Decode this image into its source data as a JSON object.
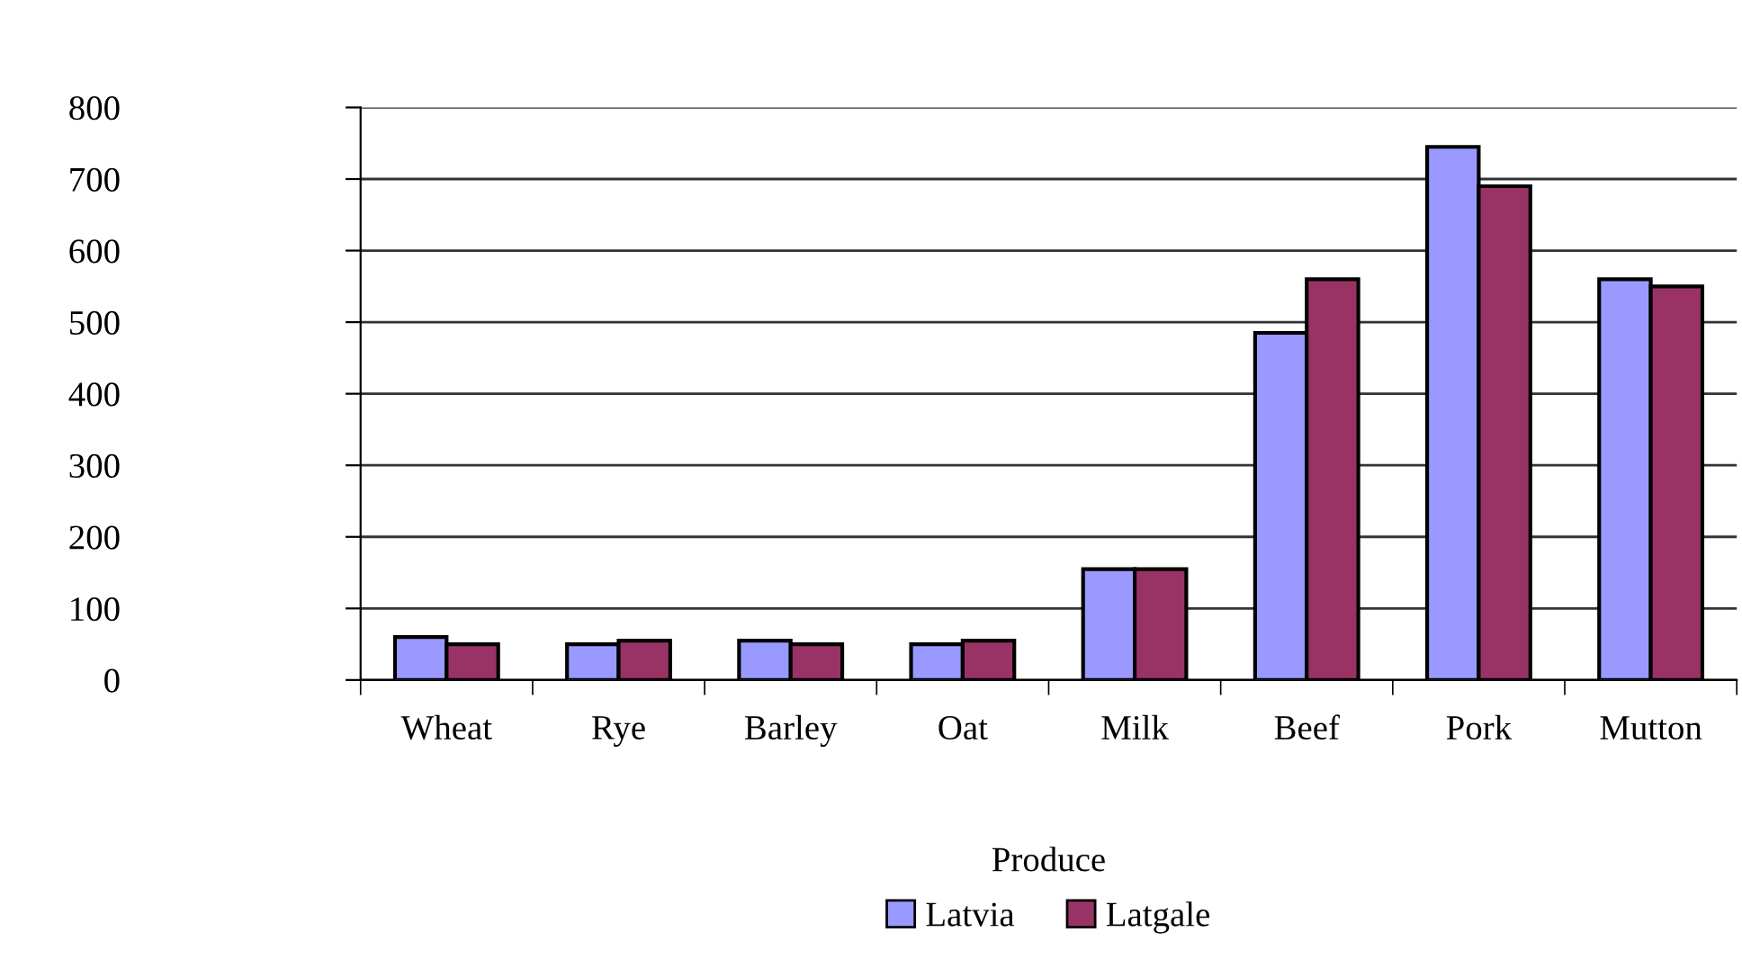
{
  "chart_data": {
    "type": "bar",
    "xlabel": "Produce",
    "categories": [
      "Wheat",
      "Rye",
      "Barley",
      "Oat",
      "Milk",
      "Beef",
      "Pork",
      "Mutton"
    ],
    "series": [
      {
        "name": "Latvia",
        "color": "#9999ff",
        "values": [
          60,
          50,
          55,
          50,
          155,
          485,
          745,
          560
        ]
      },
      {
        "name": "Latgale",
        "color": "#993366",
        "values": [
          50,
          55,
          50,
          55,
          155,
          560,
          690,
          550
        ]
      }
    ],
    "ylim": [
      0,
      800
    ],
    "yticks": [
      0,
      100,
      200,
      300,
      400,
      500,
      600,
      700,
      800
    ],
    "grid": "y",
    "legend": "bottom"
  }
}
